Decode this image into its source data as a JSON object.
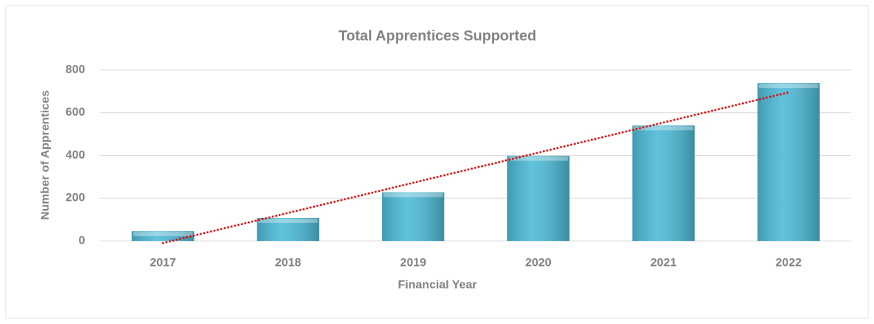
{
  "chart_data": {
    "type": "bar",
    "title": "Total Apprentices Supported",
    "x_label": "Financial Year",
    "y_label": "Number of Apprentices",
    "categories": [
      "2017",
      "2018",
      "2019",
      "2020",
      "2021",
      "2022"
    ],
    "values": [
      45,
      107,
      227,
      398,
      540,
      738
    ],
    "color": "#4bbad6",
    "ylim": [
      0,
      800
    ],
    "yticks": [
      0,
      200,
      400,
      600,
      800
    ],
    "grid": true,
    "trendline": "linear",
    "trendline_color": "#e00000"
  }
}
